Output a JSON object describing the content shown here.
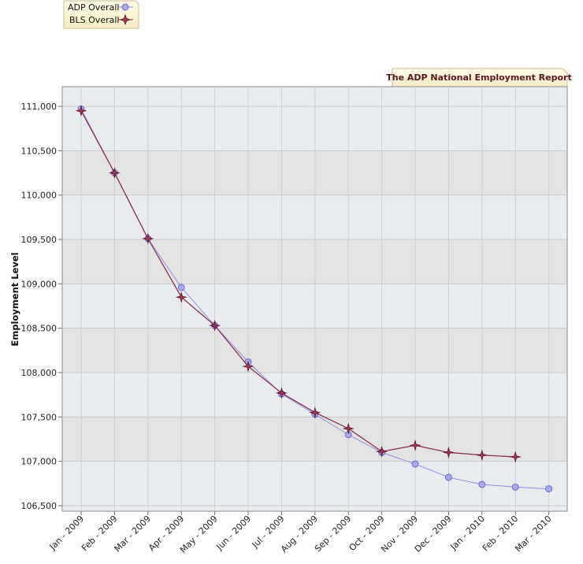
{
  "chart_data": {
    "type": "line",
    "title": "The ADP National Employment Report",
    "xlabel": "",
    "ylabel": "Employment Level",
    "ylim": [
      106500,
      111000
    ],
    "y_ticks": [
      106500,
      107000,
      107500,
      108000,
      108500,
      109000,
      109500,
      110000,
      110500,
      111000
    ],
    "y_tick_labels": [
      "106,500",
      "107,000",
      "107,500",
      "108,000",
      "108,500",
      "109,000",
      "109,500",
      "110,000",
      "110,500",
      "111,000"
    ],
    "categories": [
      "Jan - 2009",
      "Feb - 2009",
      "Mar - 2009",
      "Apr - 2009",
      "May - 2009",
      "Jun - 2009",
      "Jul - 2009",
      "Aug - 2009",
      "Sep - 2009",
      "Oct - 2009",
      "Nov - 2009",
      "Dec - 2009",
      "Jan - 2010",
      "Feb - 2010",
      "Mar - 2010"
    ],
    "grid": true,
    "legend_position": "top-left",
    "series": [
      {
        "name": "ADP Overall",
        "marker": "circle",
        "color": "#8f8fe8",
        "fill": "#a9a9f0",
        "values": [
          110970,
          110250,
          109510,
          108960,
          108530,
          108120,
          107760,
          107530,
          107300,
          107100,
          106970,
          106820,
          106740,
          106710,
          106690
        ]
      },
      {
        "name": "BLS Overall",
        "marker": "star",
        "color": "#8a2442",
        "fill": "#a8365a",
        "values": [
          110950,
          110250,
          109510,
          108850,
          108530,
          108070,
          107770,
          107550,
          107370,
          107110,
          107180,
          107100,
          107070,
          107050,
          null
        ]
      }
    ]
  }
}
